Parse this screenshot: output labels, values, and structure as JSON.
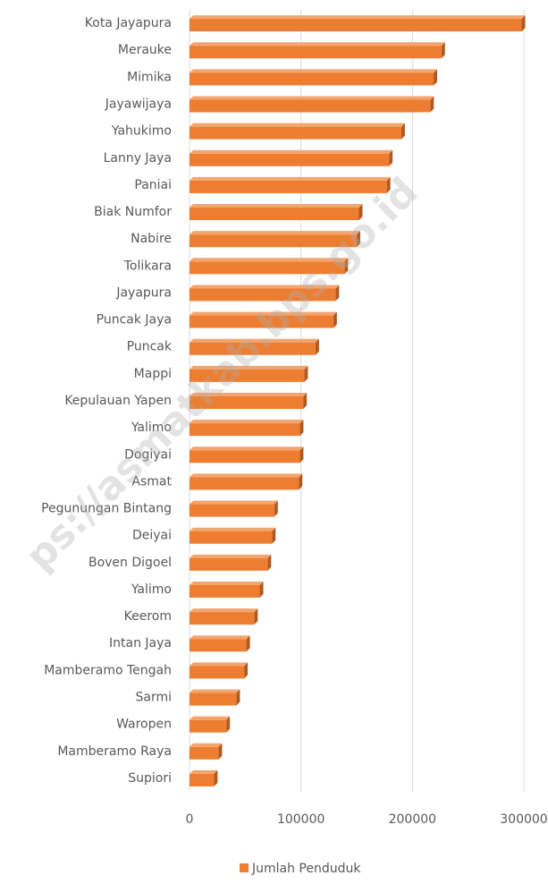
{
  "chart_data": {
    "type": "bar",
    "orientation": "horizontal",
    "categories": [
      "Kota Jayapura",
      "Merauke",
      "Mimika",
      "Jayawijaya",
      "Yahukimo",
      "Lanny Jaya",
      "Paniai",
      "Biak Numfor",
      "Nabire",
      "Tolikara",
      "Jayapura",
      "Puncak Jaya",
      "Puncak",
      "Mappi",
      "Kepulauan Yapen",
      "Yalimo",
      "Dogiyai",
      "Asmat",
      "Pegunungan Bintang",
      "Deiyai",
      "Boven Digoel",
      "Yalimo",
      "Keerom",
      "Intan Jaya",
      "Mamberamo Tengah",
      "Sarmi",
      "Waropen",
      "Mamberamo Raya",
      "Supiori"
    ],
    "series": [
      {
        "name": "Jumlah Penduduk",
        "color": "#ed7d31",
        "values": [
          298000,
          226000,
          219000,
          216000,
          190000,
          179000,
          177000,
          152000,
          150000,
          139000,
          131000,
          129000,
          113000,
          103000,
          102000,
          99000,
          99000,
          98000,
          76000,
          74000,
          70000,
          63000,
          58000,
          51000,
          49000,
          42000,
          33000,
          26000,
          22000
        ]
      }
    ],
    "xlim": [
      0,
      300000
    ],
    "xticks": [
      0,
      100000,
      200000,
      300000
    ],
    "grid": true,
    "legend": "bottom",
    "watermark": "ps://asmatkab.bps.go.id"
  }
}
